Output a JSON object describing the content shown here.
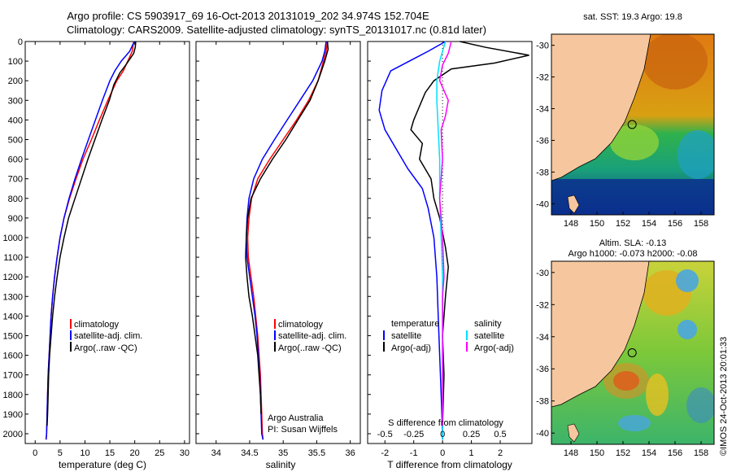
{
  "header": {
    "title_line1": "Argo profile: CS 5903917_69 16-Oct-2013 20131019_202 34.974S 152.704E",
    "title_line2": "Climatology: CARS2009. Satellite-adjusted climatology: synTS_20131017.nc (0.81d later)"
  },
  "colors": {
    "climatology": "#ff0000",
    "satellite": "#0000ff",
    "argo": "#000000",
    "sal_satellite": "#00e0ff",
    "sal_argo": "#ff00ff",
    "land": "#f6c79e"
  },
  "chart_data": [
    {
      "type": "line",
      "id": "temperature",
      "xlabel": "temperature (deg C)",
      "ylabel": "",
      "xlim": [
        -2,
        31
      ],
      "ylim": [
        2050,
        0
      ],
      "xticks": [
        0,
        5,
        10,
        15,
        20,
        25,
        30
      ],
      "yticks": [
        0,
        100,
        200,
        300,
        400,
        500,
        600,
        700,
        800,
        900,
        1000,
        1100,
        1200,
        1300,
        1400,
        1500,
        1600,
        1700,
        1800,
        1900,
        2000
      ],
      "legend": [
        "climatology",
        "satellite-adj. clim.",
        "Argo(..raw -QC)"
      ],
      "series": [
        {
          "name": "climatology",
          "color": "#ff0000",
          "x": [
            19.8,
            19.5,
            18.6,
            17.7,
            16.4,
            14.6,
            12.9,
            11.3,
            9.6,
            8.2,
            6.9,
            5.8,
            5.0,
            4.4,
            3.9,
            3.5,
            3.2,
            3.0,
            2.8,
            2.6,
            2.5,
            2.4,
            2.3,
            2.2
          ],
          "y": [
            0,
            50,
            100,
            150,
            200,
            300,
            400,
            500,
            600,
            700,
            800,
            900,
            1000,
            1100,
            1200,
            1300,
            1400,
            1500,
            1600,
            1700,
            1800,
            1900,
            2000,
            2030
          ]
        },
        {
          "name": "satellite-adj. clim.",
          "color": "#0000ff",
          "x": [
            19.9,
            19.0,
            17.3,
            16.0,
            15.0,
            13.5,
            12.1,
            10.7,
            9.3,
            8.0,
            6.8,
            5.8,
            5.0,
            4.4,
            3.9,
            3.5,
            3.2,
            3.0,
            2.8,
            2.6,
            2.5,
            2.4,
            2.3,
            2.2
          ],
          "y": [
            0,
            50,
            100,
            150,
            200,
            300,
            400,
            500,
            600,
            700,
            800,
            900,
            1000,
            1100,
            1200,
            1300,
            1400,
            1500,
            1600,
            1700,
            1800,
            1900,
            2000,
            2030
          ]
        },
        {
          "name": "Argo(..raw -QC)",
          "color": "#000000",
          "x": [
            20.2,
            20.1,
            19.8,
            18.2,
            17.0,
            15.8,
            14.9,
            13.4,
            12.0,
            10.6,
            9.3,
            8.0,
            6.7,
            5.8,
            5.0,
            4.4,
            3.9,
            3.5,
            3.2,
            2.9,
            2.7,
            2.6,
            2.5,
            2.4
          ],
          "y": [
            0,
            30,
            60,
            120,
            160,
            220,
            300,
            400,
            500,
            600,
            700,
            800,
            900,
            1000,
            1100,
            1200,
            1300,
            1400,
            1500,
            1600,
            1700,
            1800,
            1900,
            1960
          ]
        }
      ]
    },
    {
      "type": "line",
      "id": "salinity",
      "xlabel": "salinity",
      "xlim": [
        33.7,
        36.15
      ],
      "ylim": [
        2050,
        0
      ],
      "xticks": [
        34,
        34.5,
        35,
        35.5,
        36
      ],
      "legend": [
        "climatology",
        "satellite-adj. clim.",
        "Argo(..raw -QC)"
      ],
      "annotation_line1": "Argo Australia",
      "annotation_line2": "PI: Susan Wijffels",
      "series": [
        {
          "name": "climatology",
          "color": "#ff0000",
          "x": [
            35.66,
            35.64,
            35.6,
            35.52,
            35.38,
            35.2,
            35.0,
            34.8,
            34.62,
            34.53,
            34.49,
            34.47,
            34.48,
            34.52,
            34.56,
            34.59,
            34.62,
            34.64,
            34.66,
            34.67,
            34.68,
            34.69,
            34.7
          ],
          "y": [
            0,
            50,
            100,
            200,
            300,
            400,
            500,
            600,
            700,
            800,
            900,
            1000,
            1100,
            1200,
            1300,
            1400,
            1500,
            1600,
            1700,
            1800,
            1900,
            2000,
            2030
          ]
        },
        {
          "name": "satellite-adj. clim.",
          "color": "#0000ff",
          "x": [
            35.64,
            35.62,
            35.58,
            35.44,
            35.25,
            35.06,
            34.87,
            34.69,
            34.56,
            34.49,
            34.46,
            34.45,
            34.46,
            34.5,
            34.54,
            34.58,
            34.61,
            34.63,
            34.65,
            34.66,
            34.67,
            34.68,
            34.7
          ],
          "y": [
            0,
            50,
            100,
            200,
            300,
            400,
            500,
            600,
            700,
            800,
            900,
            1000,
            1100,
            1200,
            1300,
            1400,
            1500,
            1600,
            1700,
            1800,
            1900,
            2000,
            2030
          ]
        },
        {
          "name": "Argo(..raw -QC)",
          "color": "#000000",
          "x": [
            35.66,
            35.67,
            35.62,
            35.52,
            35.4,
            35.22,
            35.04,
            34.84,
            34.66,
            34.52,
            34.47,
            34.45,
            34.44,
            34.46,
            34.49,
            34.54,
            34.58,
            34.62,
            34.64,
            34.66,
            34.67
          ],
          "y": [
            0,
            40,
            100,
            200,
            300,
            400,
            500,
            600,
            700,
            800,
            900,
            1000,
            1100,
            1200,
            1300,
            1400,
            1500,
            1600,
            1700,
            1800,
            1900
          ]
        }
      ]
    },
    {
      "type": "line",
      "id": "differences",
      "xlabel_top": "S difference from climatology",
      "xlabel": "T difference from climatology",
      "ylim": [
        2050,
        0
      ],
      "t_xlim": [
        -2.6,
        3.1
      ],
      "t_xticks": [
        -2,
        -1,
        0,
        1,
        2
      ],
      "s_ticklabels": [
        "-0.5",
        "-0.25",
        "0",
        "0.25",
        "0.5"
      ],
      "s_tick_t_equiv": [
        -2,
        -1,
        0,
        1,
        2
      ],
      "legend_titles": [
        "temperature",
        "salinity"
      ],
      "legend": [
        "satellite",
        "Argo(-adj)",
        "satellite",
        "Argo(-adj)"
      ],
      "series": [
        {
          "name": "T satellite",
          "color": "#0000ff",
          "x": [
            0.1,
            -0.5,
            -1.8,
            -2.1,
            -2.2,
            -2.0,
            -1.6,
            -1.2,
            -0.7,
            -0.5,
            -0.3,
            -0.2,
            -0.15,
            -0.1,
            -0.05,
            0.0,
            0.0
          ],
          "y": [
            0,
            50,
            150,
            250,
            350,
            450,
            550,
            650,
            750,
            850,
            1000,
            1200,
            1400,
            1600,
            1800,
            2000,
            2030
          ]
        },
        {
          "name": "T Argo(-adj)",
          "color": "#000000",
          "x": [
            0.6,
            1.5,
            3.0,
            1.8,
            0.3,
            -0.3,
            -0.6,
            -0.8,
            -1.0,
            -1.1,
            -0.7,
            -0.8,
            -0.4,
            -0.3,
            -0.1,
            0.1,
            0.2,
            0.1,
            0.0,
            0.05,
            0.0
          ],
          "y": [
            0,
            30,
            70,
            110,
            140,
            200,
            260,
            330,
            400,
            450,
            520,
            600,
            700,
            800,
            900,
            1050,
            1150,
            1300,
            1500,
            1700,
            1960
          ]
        },
        {
          "name": "S satellite",
          "color": "#00e0ff",
          "x": [
            0.1,
            0.0,
            -0.1,
            -0.2,
            -0.2,
            -0.15,
            -0.1,
            -0.1,
            -0.05,
            0.0,
            0.0,
            0.0,
            0.0,
            0.0
          ],
          "y": [
            0,
            50,
            100,
            200,
            300,
            450,
            600,
            800,
            1000,
            1200,
            1400,
            1600,
            1800,
            2030
          ]
        },
        {
          "name": "S Argo(-adj)",
          "color": "#ff00ff",
          "x": [
            0.3,
            0.2,
            0.0,
            -0.1,
            0.2,
            0.1,
            -0.05,
            0.0,
            -0.1,
            0.0,
            0.05,
            0.0,
            0.0,
            0.0
          ],
          "y": [
            0,
            60,
            120,
            200,
            300,
            380,
            450,
            600,
            800,
            1000,
            1200,
            1300,
            1500,
            1960
          ]
        }
      ]
    },
    {
      "type": "heatmap",
      "id": "sst_map",
      "title": "sat. SST: 19.3 Argo: 19.8",
      "xlim": [
        146.5,
        159
      ],
      "ylim": [
        -40.7,
        -29.3
      ],
      "xticks": [
        148,
        150,
        152,
        154,
        156,
        158
      ],
      "yticks": [
        -30,
        -32,
        -34,
        -36,
        -38,
        -40
      ],
      "float_position": [
        152.7,
        -35.0
      ]
    },
    {
      "type": "heatmap",
      "id": "sla_map",
      "title_line1": "Altim. SLA: -0.13",
      "title_line2": "Argo h1000: -0.073 h2000: -0.08",
      "xlim": [
        146.5,
        159
      ],
      "ylim": [
        -40.7,
        -29.3
      ],
      "xticks": [
        148,
        150,
        152,
        154,
        156,
        158
      ],
      "yticks": [
        -30,
        -32,
        -34,
        -36,
        -38,
        -40
      ],
      "float_position": [
        152.7,
        -35.0
      ],
      "side_stamp": "©IMOS 24-Oct-2013 20:01:33"
    }
  ]
}
